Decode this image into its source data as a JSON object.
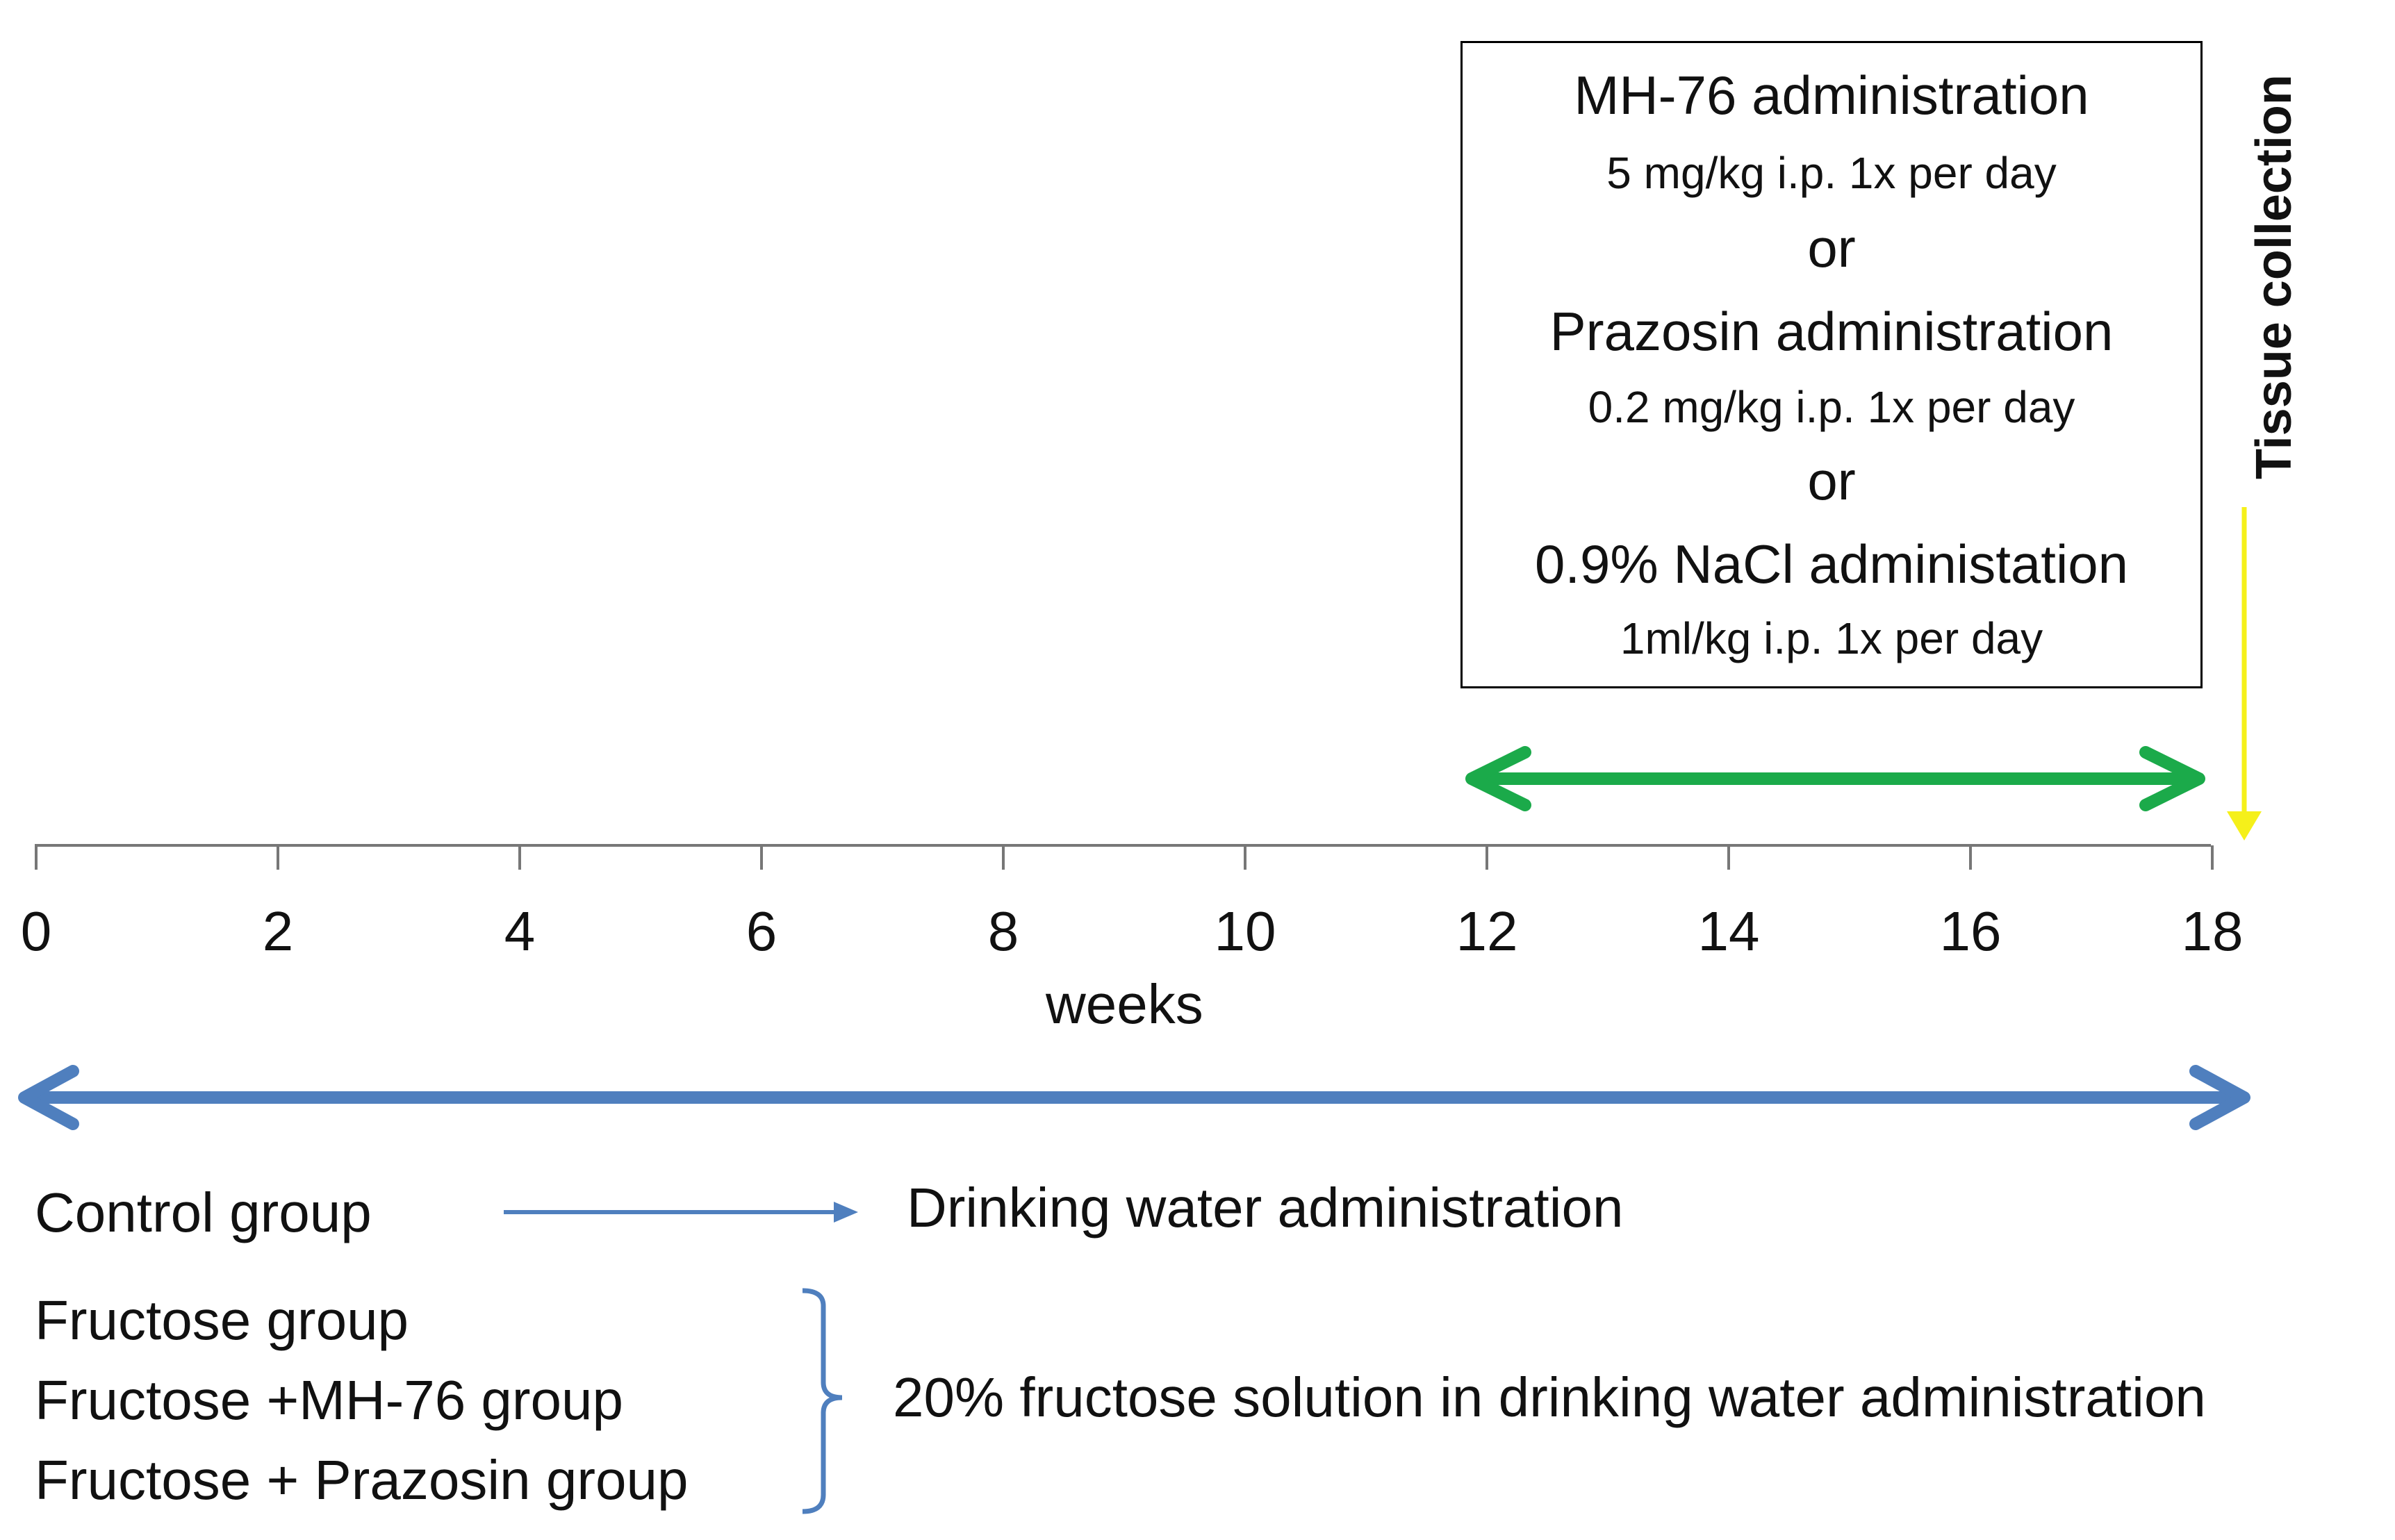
{
  "treatment_box": {
    "line1": "MH-76 administration",
    "line2": "5 mg/kg i.p. 1x per day",
    "line3": "or",
    "line4": "Prazosin administration",
    "line5": "0.2 mg/kg i.p. 1x per day",
    "line6": "or",
    "line7": "0.9% NaCl administation",
    "line8": "1ml/kg i.p. 1x per day"
  },
  "tissue_label": "Tissue collection",
  "axis": {
    "ticks": [
      "0",
      "2",
      "4",
      "6",
      "8",
      "10",
      "12",
      "14",
      "16",
      "18"
    ],
    "label": "weeks"
  },
  "groups": {
    "control": "Control group",
    "control_desc": "Drinking water administration",
    "fructose": "Fructose group",
    "fructose_mh76": "Fructose +MH-76 group",
    "fructose_prazosin": "Fructose + Prazosin group",
    "fructose_desc": "20% fructose solution in drinking water administration"
  },
  "colors": {
    "blue_arrow": "#4F7FBE",
    "green_arrow": "#1BAA4A",
    "yellow_arrow": "#F5F01A",
    "axis": "#777777"
  }
}
